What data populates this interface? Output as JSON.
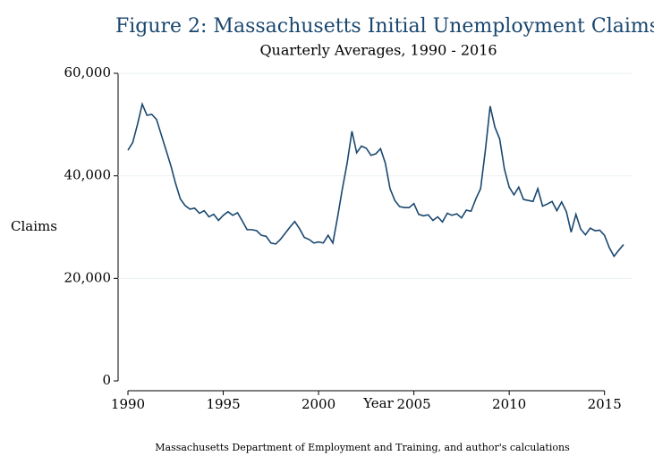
{
  "chart_data": {
    "type": "line",
    "title": "Figure 2: Massachusetts Initial Unemployment Claims",
    "subtitle": "Quarterly Averages, 1990 - 2016",
    "x_label": "Year",
    "y_label": "Claims",
    "note": "Massachusetts Department of Employment and Training, and author's calculations",
    "color": "#1a476f",
    "grid": true,
    "xlim": [
      1990,
      2016
    ],
    "xticks": [
      1990,
      1995,
      2000,
      2005,
      2010,
      2015
    ],
    "ylim": [
      0,
      60000
    ],
    "yticks": [
      0,
      {
        "value": 20000,
        "label": "20,000"
      },
      {
        "value": 40000,
        "label": "40,000"
      },
      {
        "value": 60000,
        "label": "60,000"
      }
    ],
    "x": [
      1990,
      1990.25,
      1990.5,
      1990.75,
      1991,
      1991.25,
      1991.5,
      1991.75,
      1992,
      1992.25,
      1992.5,
      1992.75,
      1993,
      1993.25,
      1993.5,
      1993.75,
      1994,
      1994.25,
      1994.5,
      1994.75,
      1995,
      1995.25,
      1995.5,
      1995.75,
      1996,
      1996.25,
      1996.5,
      1996.75,
      1997,
      1997.25,
      1997.5,
      1997.75,
      1998,
      1998.25,
      1998.5,
      1998.75,
      1999,
      1999.25,
      1999.5,
      1999.75,
      2000,
      2000.25,
      2000.5,
      2000.75,
      2001,
      2001.25,
      2001.5,
      2001.75,
      2002,
      2002.25,
      2002.5,
      2002.75,
      2003,
      2003.25,
      2003.5,
      2003.75,
      2004,
      2004.25,
      2004.5,
      2004.75,
      2005,
      2005.25,
      2005.5,
      2005.75,
      2006,
      2006.25,
      2006.5,
      2006.75,
      2007,
      2007.25,
      2007.5,
      2007.75,
      2008,
      2008.25,
      2008.5,
      2008.75,
      2009,
      2009.25,
      2009.5,
      2009.75,
      2010,
      2010.25,
      2010.5,
      2010.75,
      2011,
      2011.25,
      2011.5,
      2011.75,
      2012,
      2012.25,
      2012.5,
      2012.75,
      2013,
      2013.25,
      2013.5,
      2013.75,
      2014,
      2014.25,
      2014.5,
      2014.75,
      2015,
      2015.25,
      2015.5,
      2015.75,
      2016
    ],
    "values": [
      45000,
      46500,
      50000,
      54000,
      51800,
      52000,
      51000,
      48000,
      45000,
      42000,
      38500,
      35500,
      34200,
      33500,
      33700,
      32700,
      33200,
      32000,
      32500,
      31300,
      32300,
      33000,
      32300,
      32800,
      31200,
      29500,
      29500,
      29300,
      28400,
      28200,
      26900,
      26700,
      27600,
      28800,
      30000,
      31100,
      29700,
      28000,
      27600,
      26900,
      27100,
      26900,
      28400,
      26900,
      32000,
      37500,
      42500,
      48700,
      44500,
      45800,
      45400,
      44000,
      44300,
      45300,
      42500,
      37500,
      35200,
      34000,
      33800,
      33800,
      34600,
      32500,
      32200,
      32400,
      31300,
      32000,
      31000,
      32700,
      32300,
      32600,
      31800,
      33300,
      33100,
      35500,
      37500,
      45000,
      53600,
      49500,
      47200,
      41300,
      37800,
      36300,
      37800,
      35400,
      35200,
      35000,
      37500,
      34100,
      34500,
      35000,
      33200,
      34900,
      33000,
      29000,
      32500,
      29600,
      28500,
      29800,
      29300,
      29400,
      28400,
      26000,
      24300,
      25500,
      26600
    ]
  }
}
